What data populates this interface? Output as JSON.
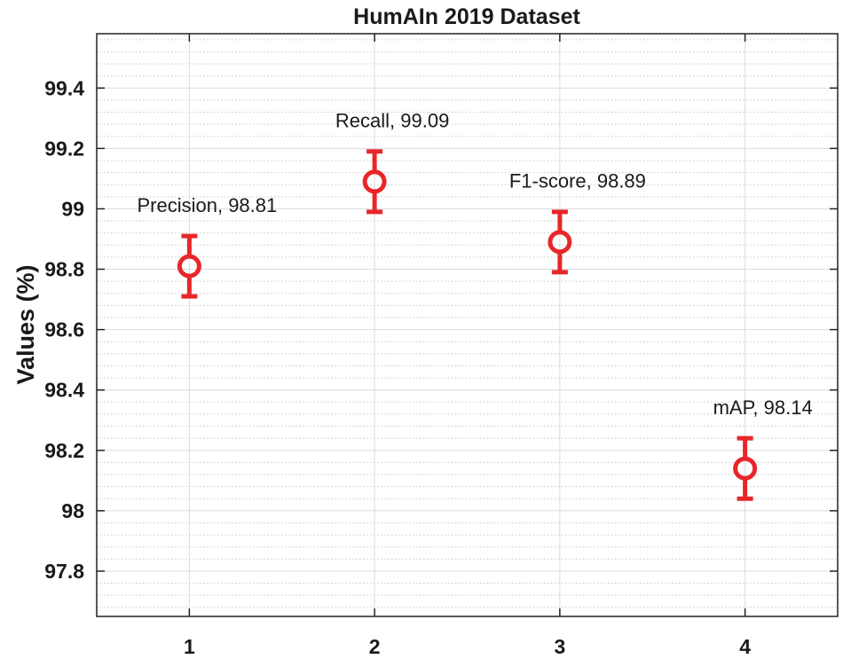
{
  "chart_data": {
    "type": "scatter",
    "title": "HumAIn 2019 Dataset",
    "xlabel": "",
    "ylabel": "Values (%)",
    "xlim": [
      0.5,
      4.5
    ],
    "ylim": [
      97.65,
      99.58
    ],
    "xticks": [
      "1",
      "2",
      "3",
      "4"
    ],
    "yticks": [
      "97.8",
      "98",
      "98.2",
      "98.4",
      "98.6",
      "98.8",
      "99",
      "99.2",
      "99.4"
    ],
    "grid": true,
    "minor_grid": true,
    "marker_color": "#e8262a",
    "series": [
      {
        "points": [
          {
            "x": 1,
            "y": 98.81,
            "err": 0.1,
            "label": "Precision, 98.81"
          },
          {
            "x": 2,
            "y": 99.09,
            "err": 0.1,
            "label": "Recall, 99.09"
          },
          {
            "x": 3,
            "y": 98.89,
            "err": 0.1,
            "label": "F1-score, 98.89"
          },
          {
            "x": 4,
            "y": 98.14,
            "err": 0.1,
            "label": "mAP, 98.14"
          }
        ]
      }
    ]
  }
}
